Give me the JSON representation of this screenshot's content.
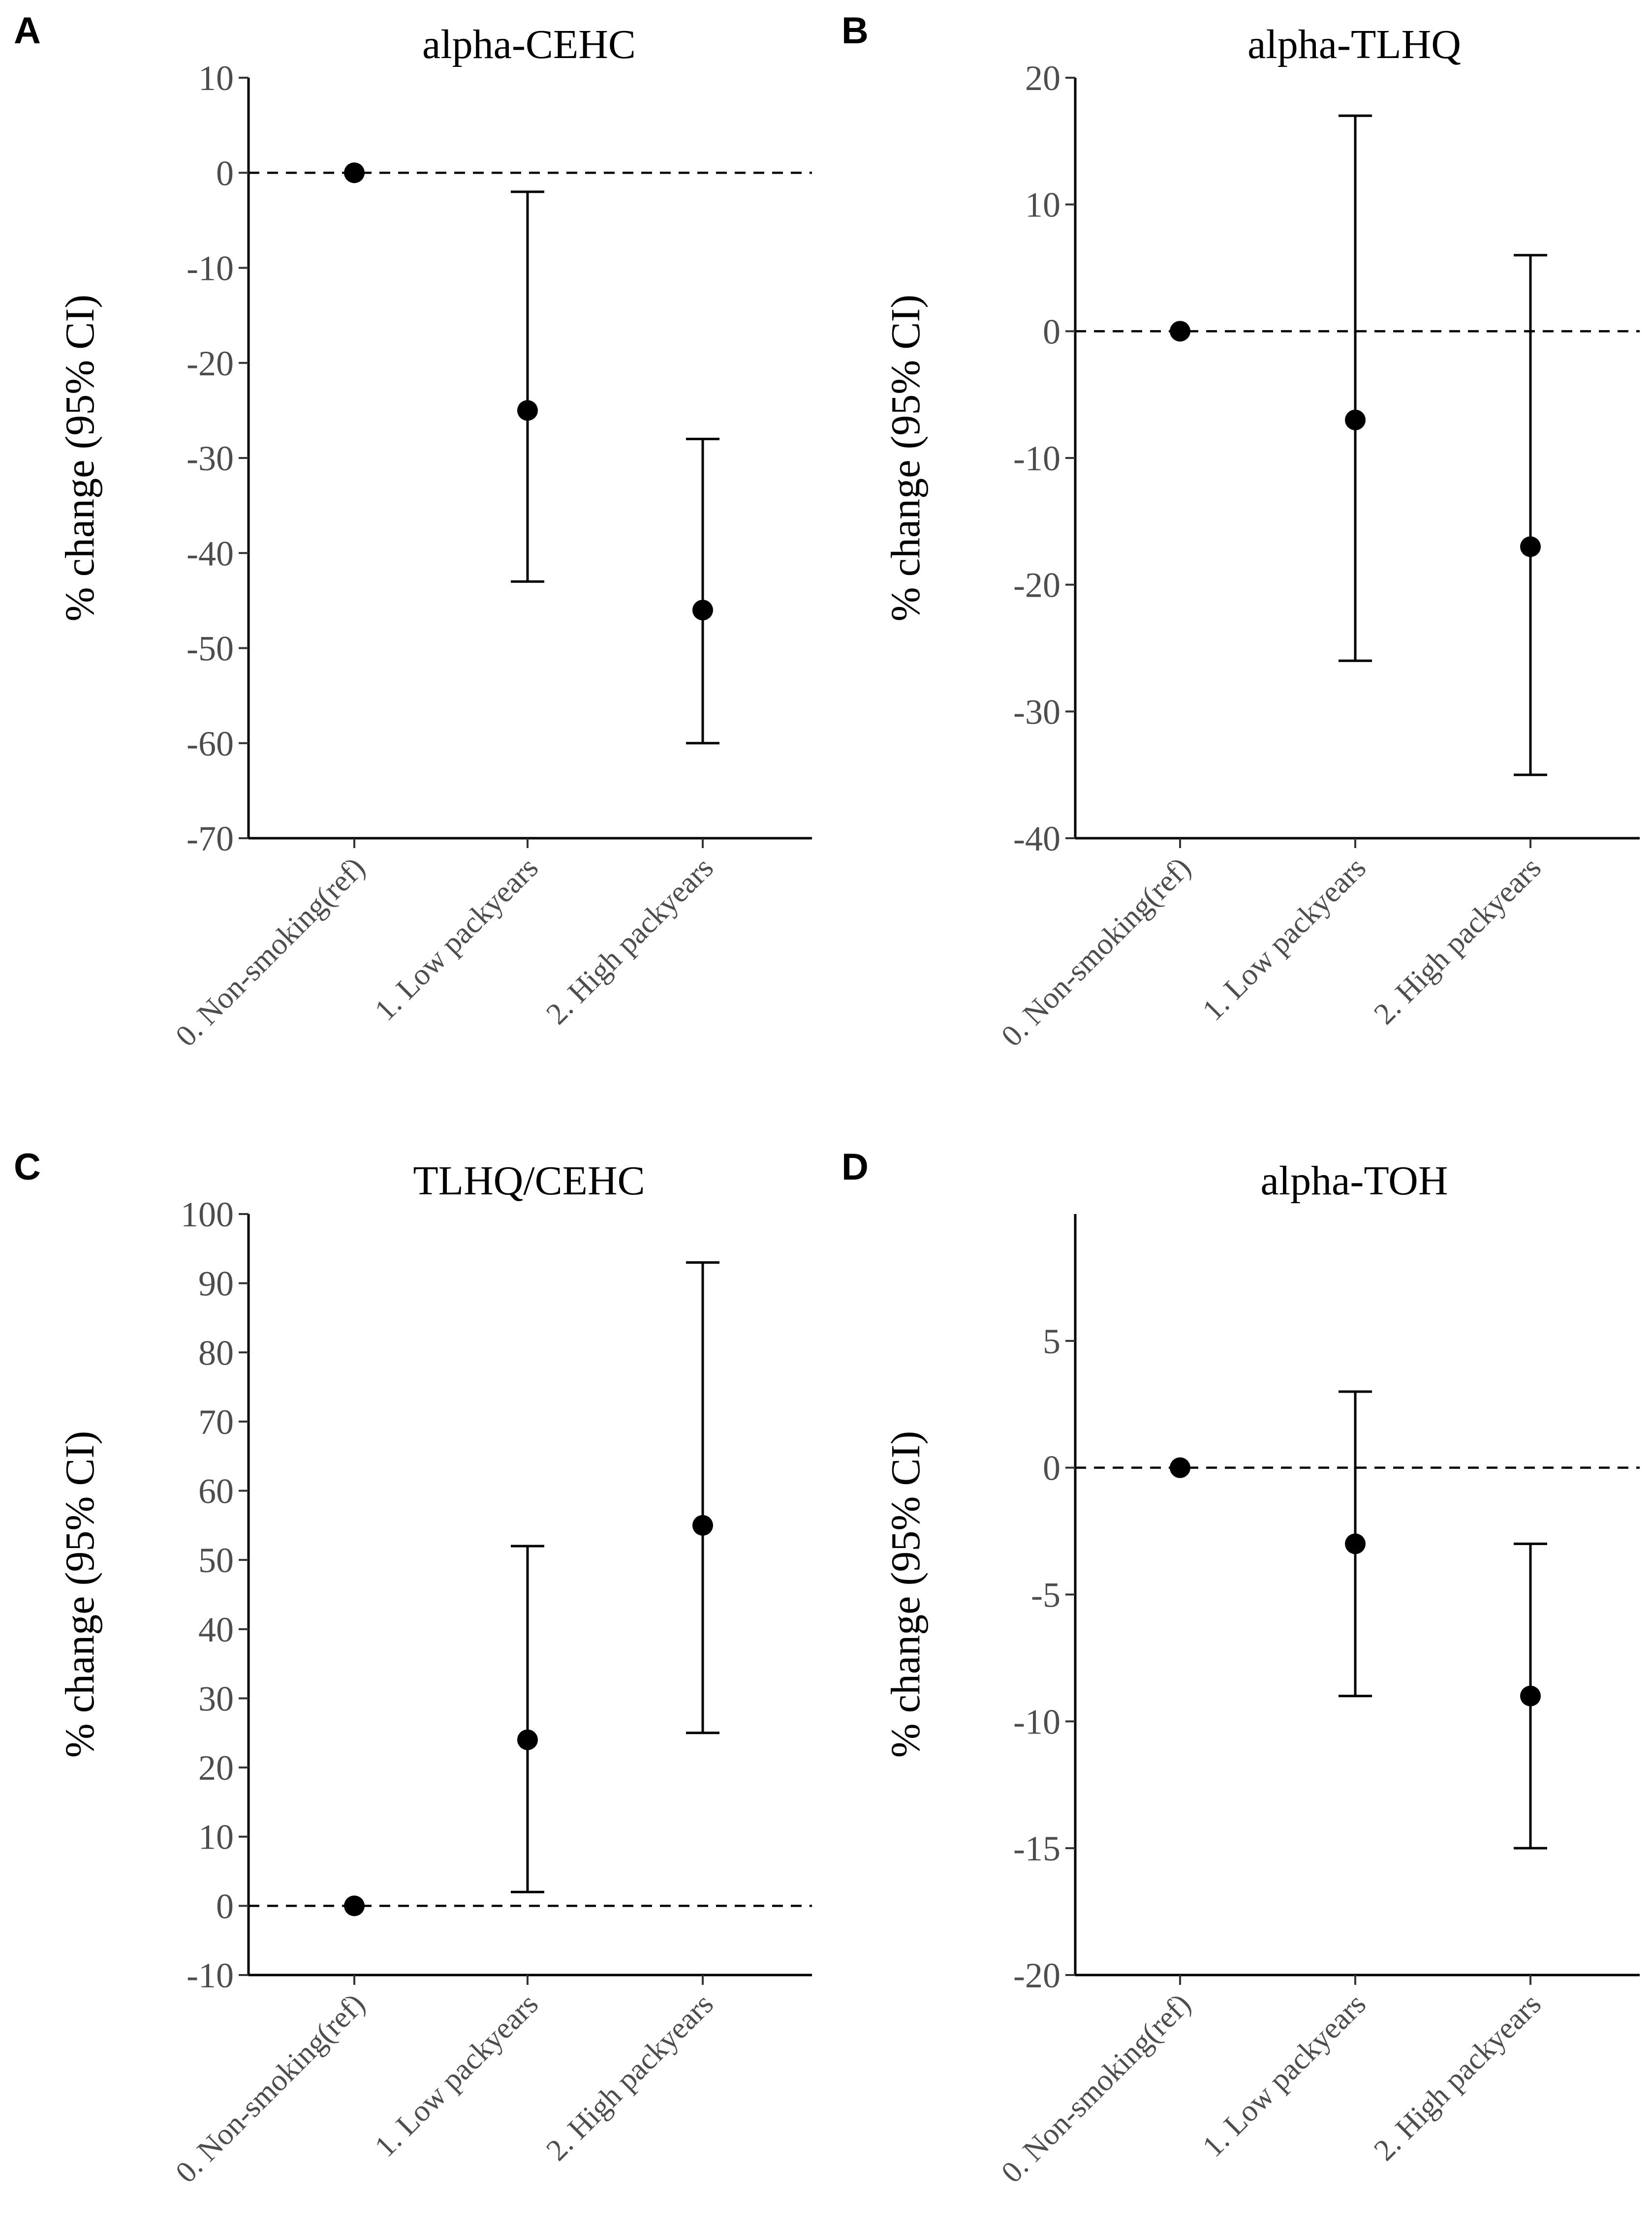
{
  "chart_data": [
    {
      "panel": "A",
      "type": "scatter",
      "title": "alpha-CEHC",
      "ylabel": "% change (95% CI)",
      "xlabel": "",
      "categories": [
        "0. Non-smoking(ref)",
        "1. Low packyears",
        "2. High packyears"
      ],
      "estimate": [
        0,
        -25,
        -46
      ],
      "ci_lower": [
        0,
        -43,
        -60
      ],
      "ci_upper": [
        0,
        -2,
        -28
      ],
      "ylim": [
        -70,
        10
      ],
      "yticks": [
        10,
        0,
        -10,
        -20,
        -30,
        -40,
        -50,
        -60,
        -70
      ],
      "ytick_labels": [
        "10",
        "0",
        "-10",
        "-20",
        "-30",
        "-40",
        "-50",
        "-60",
        "-70"
      ],
      "reference_line": 0,
      "grid": false
    },
    {
      "panel": "B",
      "type": "scatter",
      "title": "alpha-TLHQ",
      "ylabel": "% change (95% CI)",
      "xlabel": "",
      "categories": [
        "0. Non-smoking(ref)",
        "1. Low packyears",
        "2. High packyears"
      ],
      "estimate": [
        0,
        -7,
        -17
      ],
      "ci_lower": [
        0,
        -26,
        -35
      ],
      "ci_upper": [
        0,
        17,
        6
      ],
      "ylim": [
        -40,
        20
      ],
      "yticks": [
        20,
        10,
        0,
        -10,
        -20,
        -30,
        -40
      ],
      "ytick_labels": [
        "20",
        "10",
        "0",
        "-10",
        "-20",
        "-30",
        "-40"
      ],
      "reference_line": 0,
      "grid": false
    },
    {
      "panel": "C",
      "type": "scatter",
      "title": "TLHQ/CEHC",
      "ylabel": "% change (95% CI)",
      "xlabel": "",
      "categories": [
        "0. Non-smoking(ref)",
        "1. Low packyears",
        "2. High packyears"
      ],
      "estimate": [
        0,
        24,
        55
      ],
      "ci_lower": [
        0,
        2,
        25
      ],
      "ci_upper": [
        0,
        52,
        93
      ],
      "ylim": [
        -10,
        100
      ],
      "yticks": [
        100,
        90,
        80,
        70,
        60,
        50,
        40,
        30,
        20,
        10,
        0,
        -10
      ],
      "ytick_labels": [
        "100",
        "90",
        "80",
        "70",
        "60",
        "50",
        "40",
        "30",
        "20",
        "10",
        "0",
        "-10"
      ],
      "reference_line": 0,
      "grid": false
    },
    {
      "panel": "D",
      "type": "scatter",
      "title": "alpha-TOH",
      "ylabel": "% change (95% CI)",
      "xlabel": "",
      "categories": [
        "0. Non-smoking(ref)",
        "1. Low packyears",
        "2. High packyears"
      ],
      "estimate": [
        0,
        -3,
        -9
      ],
      "ci_lower": [
        0,
        -9,
        -15
      ],
      "ci_upper": [
        0,
        3,
        -3
      ],
      "ylim": [
        -20,
        10
      ],
      "yticks": [
        5,
        0,
        -5,
        -10,
        -15,
        -20
      ],
      "ytick_labels": [
        "5",
        "0",
        "-5",
        "-10",
        "-15",
        "-20"
      ],
      "reference_line": 0,
      "grid": false
    }
  ]
}
